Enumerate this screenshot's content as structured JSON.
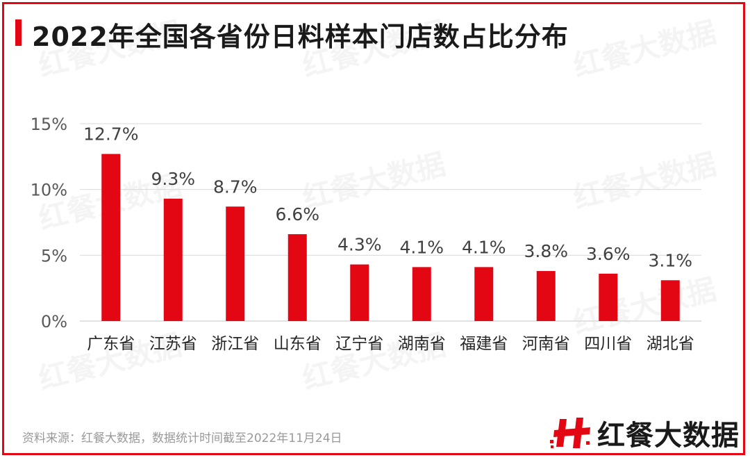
{
  "title": "2022年全国各省份日料样本门店数占比分布",
  "source": "资料来源：红餐大数据，数据统计时间截至2022年11月24日",
  "brand": {
    "name": "红餐大数据",
    "logo_icon": "red-h-logo-icon",
    "watermark_text": "红餐大数据"
  },
  "colors": {
    "accent": "#e30613",
    "bar": "#e30613",
    "grid": "#d9d9d9",
    "axis_text": "#595959",
    "label_text": "#404040"
  },
  "chart_data": {
    "type": "bar",
    "categories": [
      "广东省",
      "江苏省",
      "浙江省",
      "山东省",
      "辽宁省",
      "湖南省",
      "福建省",
      "河南省",
      "四川省",
      "湖北省"
    ],
    "values": [
      12.7,
      9.3,
      8.7,
      6.6,
      4.3,
      4.1,
      4.1,
      3.8,
      3.6,
      3.1
    ],
    "value_labels": [
      "12.7%",
      "9.3%",
      "8.7%",
      "6.6%",
      "4.3%",
      "4.1%",
      "4.1%",
      "3.8%",
      "3.6%",
      "3.1%"
    ],
    "yticks": [
      0,
      5,
      10,
      15
    ],
    "ytick_labels": [
      "0%",
      "5%",
      "10%",
      "15%"
    ],
    "ylim": [
      0,
      15
    ],
    "unit": "%",
    "grid": true
  }
}
